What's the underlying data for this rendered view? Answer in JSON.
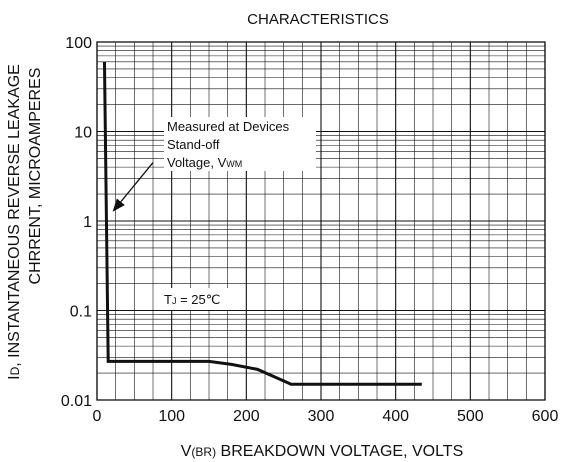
{
  "chart_data": {
    "type": "line",
    "title": "CHARACTERISTICS",
    "xlabel_prefix": "V",
    "xlabel_sub": "(BR)",
    "xlabel_rest": " BREAKDOWN VOLTAGE, VOLTS",
    "ylabel_line1_prefix": "I",
    "ylabel_line1_sub": "D",
    "ylabel_line1_rest": ", INSTANTANEOUS REVERSE LEAKAGE",
    "ylabel_line2": "CHRRENT, MICROAMPERES",
    "xlim": [
      0,
      600
    ],
    "ylim": [
      0.01,
      100
    ],
    "y_scale": "log",
    "grid": true,
    "x_ticks": [
      {
        "value": 0,
        "label": "0"
      },
      {
        "value": 100,
        "label": "100"
      },
      {
        "value": 200,
        "label": "200"
      },
      {
        "value": 300,
        "label": "300"
      },
      {
        "value": 400,
        "label": "400"
      },
      {
        "value": 500,
        "label": "500"
      },
      {
        "value": 600,
        "label": "600"
      }
    ],
    "y_ticks": [
      {
        "value": 0.01,
        "label": "0.01"
      },
      {
        "value": 0.1,
        "label": "0.1"
      },
      {
        "value": 1,
        "label": "1"
      },
      {
        "value": 10,
        "label": "10"
      },
      {
        "value": 100,
        "label": "100"
      }
    ],
    "series": [
      {
        "x": [
          10,
          15,
          150,
          180,
          215,
          260,
          435
        ],
        "y": [
          60,
          0.027,
          0.027,
          0.025,
          0.022,
          0.015,
          0.015
        ],
        "color": "#111111"
      }
    ],
    "annotations": {
      "measured_line1": "Measured at Devices",
      "measured_line2": "Stand-off",
      "measured_line3_prefix": "Voltage, V",
      "measured_line3_sub": "WM",
      "tj_prefix": "T",
      "tj_sub": "J",
      "tj_rest": " = 25℃",
      "arrow_from": {
        "x": 75,
        "y": 4.5
      },
      "arrow_to": {
        "x": 22,
        "y": 1.3
      }
    }
  }
}
